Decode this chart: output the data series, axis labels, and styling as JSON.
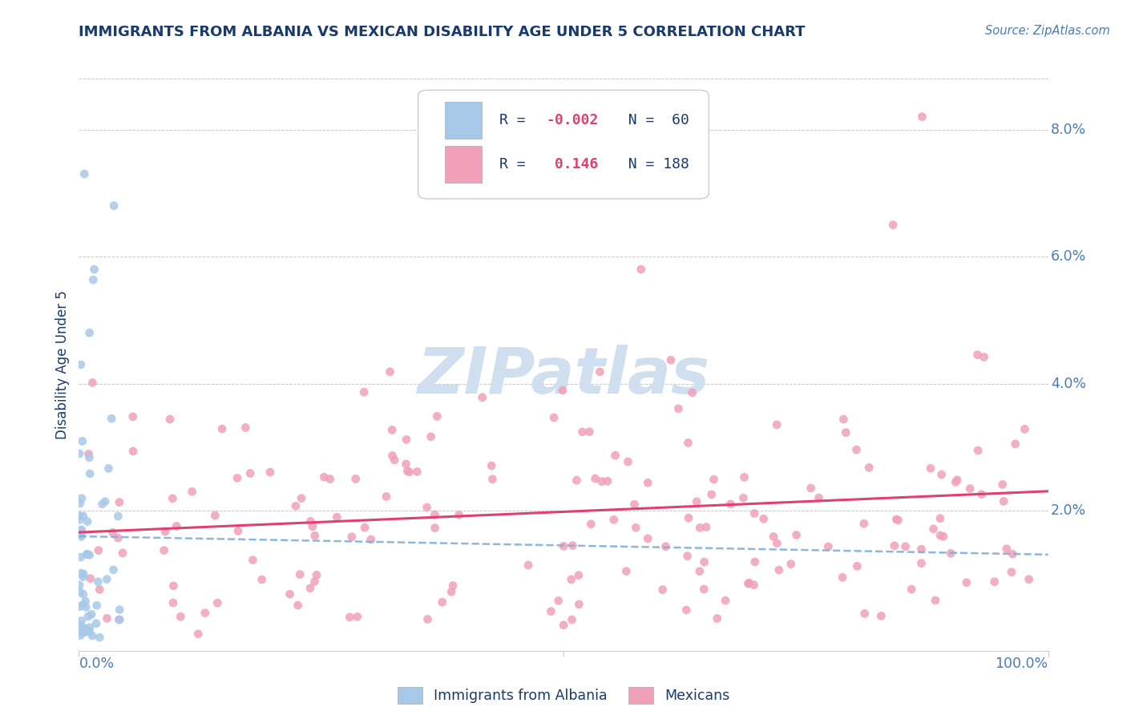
{
  "title": "IMMIGRANTS FROM ALBANIA VS MEXICAN DISABILITY AGE UNDER 5 CORRELATION CHART",
  "source": "Source: ZipAtlas.com",
  "ylabel": "Disability Age Under 5",
  "r_albania": -0.002,
  "n_albania": 60,
  "r_mexican": 0.146,
  "n_mexican": 188,
  "xlim": [
    0.0,
    1.0
  ],
  "ylim": [
    -0.002,
    0.088
  ],
  "yticks": [
    0.0,
    0.02,
    0.04,
    0.06,
    0.08
  ],
  "ytick_labels": [
    "",
    "2.0%",
    "4.0%",
    "6.0%",
    "8.0%"
  ],
  "background_color": "#ffffff",
  "grid_color": "#bbbbbb",
  "scatter_albania_color": "#a8c8e8",
  "scatter_mexican_color": "#f0a0b8",
  "trendline_albania_color": "#80b0d8",
  "trendline_mexican_color": "#e04070",
  "watermark_color": "#d0dff0",
  "title_color": "#1a3a6a",
  "axis_label_color": "#4a7ab5",
  "legend_text_color": "#1a3a6a",
  "r_value_color": "#e04070",
  "seed": 42
}
